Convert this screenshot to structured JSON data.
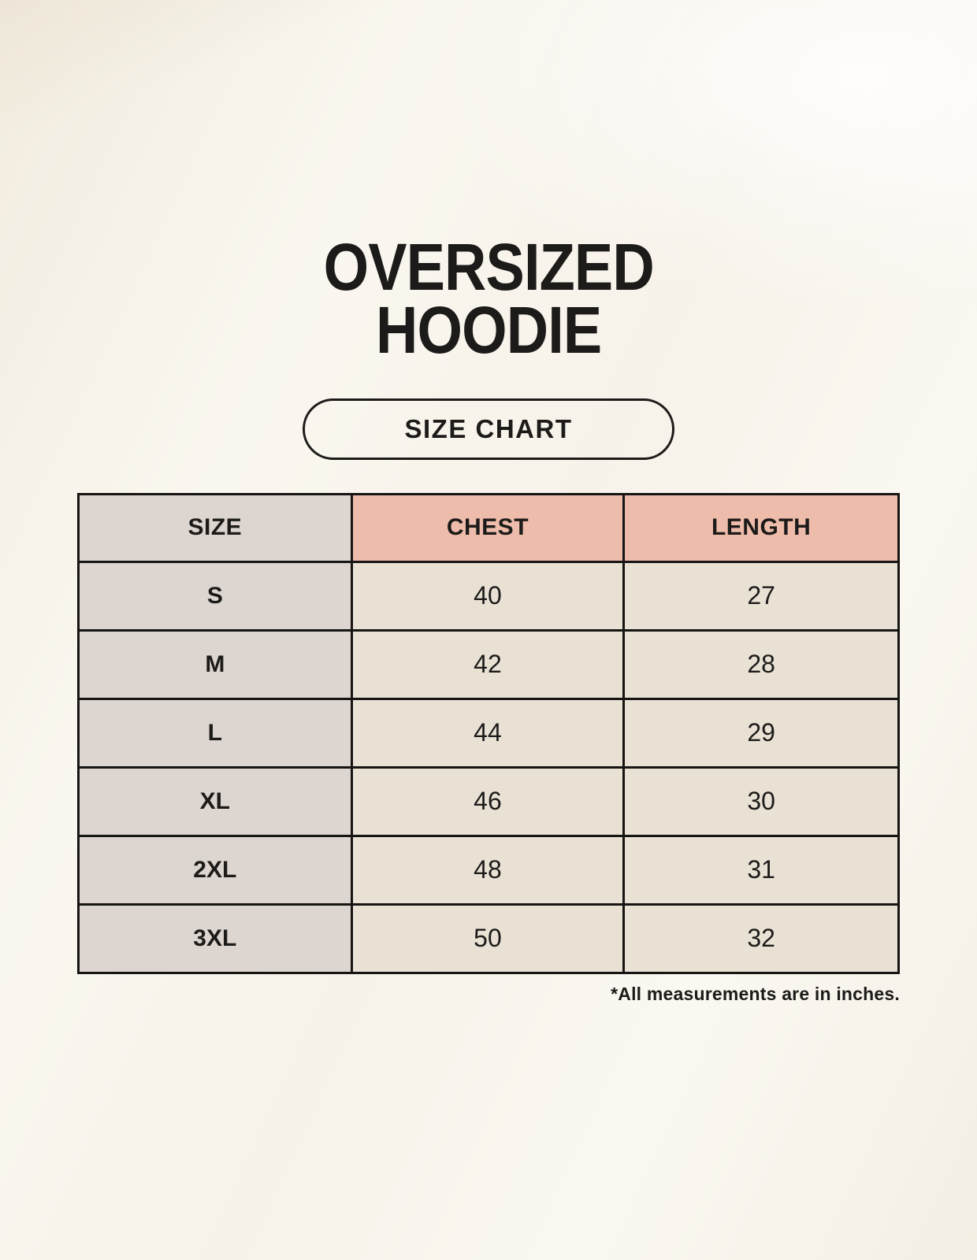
{
  "header": {
    "title_lines": [
      "OVERSIZED",
      "HOODIE"
    ],
    "badge_label": "SIZE CHART"
  },
  "chart_data": {
    "type": "table",
    "title": "OVERSIZED HOODIE",
    "subtitle": "SIZE CHART",
    "columns": [
      "SIZE",
      "CHEST",
      "LENGTH"
    ],
    "rows": [
      [
        "S",
        "40",
        "27"
      ],
      [
        "M",
        "42",
        "28"
      ],
      [
        "L",
        "44",
        "29"
      ],
      [
        "XL",
        "46",
        "30"
      ],
      [
        "2XL",
        "48",
        "31"
      ],
      [
        "3XL",
        "50",
        "32"
      ]
    ],
    "note": "*All measurements are in inches.",
    "units": "inches"
  },
  "colors": {
    "page_bg": "#f9f5ee",
    "size_col_bg": "#ddd6d0",
    "header_accent_bg": "#eebcab",
    "value_cell_bg": "#e8e1d4",
    "border": "#161513",
    "ink": "#1c1b19"
  }
}
